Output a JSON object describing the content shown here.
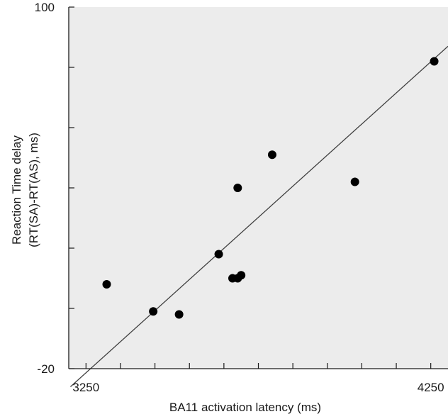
{
  "chart_data": {
    "type": "scatter",
    "title": "",
    "xlabel": "BA11 activation latency (ms)",
    "ylabel_lines": [
      "Reaction Time delay",
      "(RT(SA)-RT(AS), ms)"
    ],
    "xlim": [
      3200,
      4300
    ],
    "ylim": [
      -20,
      100
    ],
    "xticks": [
      3250,
      3350,
      3450,
      3550,
      3650,
      3750,
      3850,
      3950,
      4050,
      4150,
      4250
    ],
    "xtick_labels": [
      "3250",
      "",
      "",
      "",
      "",
      "",
      "",
      "",
      "",
      "",
      "4250"
    ],
    "yticks": [
      -20,
      0,
      20,
      40,
      60,
      80,
      100
    ],
    "ytick_labels": [
      "-20",
      "",
      "",
      "",
      "",
      "",
      "100"
    ],
    "grid": false,
    "plot_background": "#ececec",
    "point_color": "#000000",
    "line_color": "#404040",
    "points": [
      {
        "x": 3310,
        "y": 8
      },
      {
        "x": 3445,
        "y": -1
      },
      {
        "x": 3520,
        "y": -2
      },
      {
        "x": 3635,
        "y": 18
      },
      {
        "x": 3675,
        "y": 10
      },
      {
        "x": 3690,
        "y": 10
      },
      {
        "x": 3690,
        "y": 40
      },
      {
        "x": 3700,
        "y": 11
      },
      {
        "x": 3790,
        "y": 51
      },
      {
        "x": 4030,
        "y": 42
      },
      {
        "x": 4260,
        "y": 82
      }
    ],
    "fit_line": [
      {
        "x": 3205,
        "y": -26
      },
      {
        "x": 4300,
        "y": 87
      }
    ]
  }
}
